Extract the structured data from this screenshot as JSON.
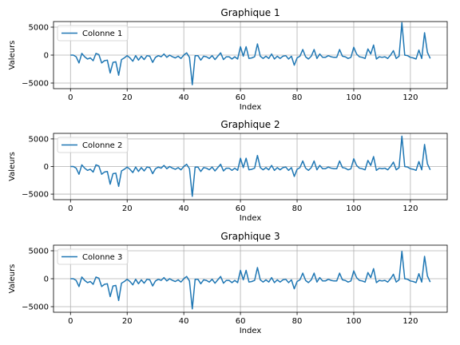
{
  "chart_data": [
    {
      "type": "line",
      "title": "Graphique 1",
      "xlabel": "Index",
      "ylabel": "Valeurs",
      "xlim": [
        -6,
        133
      ],
      "ylim": [
        -6000,
        6000
      ],
      "xticks": [
        0,
        20,
        40,
        60,
        80,
        100,
        120
      ],
      "yticks": [
        -5000,
        0,
        5000
      ],
      "grid": true,
      "legend_position": "top-left",
      "color": "#1f77b4",
      "series": [
        {
          "name": "Colonne 1",
          "x": [
            0,
            1,
            2,
            3,
            4,
            5,
            6,
            7,
            8,
            9,
            10,
            11,
            12,
            13,
            14,
            15,
            16,
            17,
            18,
            19,
            20,
            21,
            22,
            23,
            24,
            25,
            26,
            27,
            28,
            29,
            30,
            31,
            32,
            33,
            34,
            35,
            36,
            37,
            38,
            39,
            40,
            41,
            42,
            43,
            44,
            45,
            46,
            47,
            48,
            49,
            50,
            51,
            52,
            53,
            54,
            55,
            56,
            57,
            58,
            59,
            60,
            61,
            62,
            63,
            64,
            65,
            66,
            67,
            68,
            69,
            70,
            71,
            72,
            73,
            74,
            75,
            76,
            77,
            78,
            79,
            80,
            81,
            82,
            83,
            84,
            85,
            86,
            87,
            88,
            89,
            90,
            91,
            92,
            93,
            94,
            95,
            96,
            97,
            98,
            99,
            100,
            101,
            102,
            103,
            104,
            105,
            106,
            107,
            108,
            109,
            110,
            111,
            112,
            113,
            114,
            115,
            116,
            117,
            118,
            119,
            120,
            121,
            122,
            123,
            124,
            125,
            126,
            127
          ],
          "values": [
            0,
            0,
            -300,
            -1400,
            300,
            -300,
            -700,
            -500,
            -1000,
            300,
            100,
            -1400,
            -1000,
            -900,
            -3200,
            -1300,
            -1200,
            -3600,
            -800,
            -500,
            -100,
            -500,
            -1100,
            -100,
            -900,
            -200,
            -800,
            -100,
            -200,
            -1300,
            -400,
            -100,
            -300,
            200,
            -400,
            0,
            -300,
            -500,
            -200,
            -600,
            0,
            400,
            -400,
            -5300,
            -100,
            -100,
            -900,
            -200,
            -300,
            -600,
            -100,
            -800,
            -200,
            400,
            -800,
            -300,
            -300,
            -700,
            -300,
            -700,
            1500,
            -200,
            1500,
            -600,
            -500,
            -300,
            2000,
            -200,
            -600,
            -200,
            -600,
            200,
            -700,
            -200,
            -600,
            -200,
            -100,
            -700,
            -200,
            -1800,
            -500,
            -200,
            1000,
            -300,
            -700,
            -200,
            1000,
            -600,
            200,
            -400,
            -400,
            -100,
            -300,
            -400,
            -400,
            1000,
            -200,
            -300,
            -600,
            -400,
            1400,
            200,
            -300,
            -400,
            -600,
            1100,
            200,
            1800,
            -700,
            -300,
            -400,
            -300,
            -600,
            0,
            800,
            -600,
            -200,
            5800,
            0,
            -100,
            -400,
            -500,
            -700,
            900,
            -600,
            4000,
            500,
            -600
          ]
        }
      ]
    },
    {
      "type": "line",
      "title": "Graphique 2",
      "xlabel": "Index",
      "ylabel": "Valeurs",
      "xlim": [
        -6,
        133
      ],
      "ylim": [
        -6000,
        6000
      ],
      "xticks": [
        0,
        20,
        40,
        60,
        80,
        100,
        120
      ],
      "yticks": [
        -5000,
        0,
        5000
      ],
      "grid": true,
      "legend_position": "top-left",
      "color": "#1f77b4",
      "series": [
        {
          "name": "Colonne 2",
          "x": [
            0,
            1,
            2,
            3,
            4,
            5,
            6,
            7,
            8,
            9,
            10,
            11,
            12,
            13,
            14,
            15,
            16,
            17,
            18,
            19,
            20,
            21,
            22,
            23,
            24,
            25,
            26,
            27,
            28,
            29,
            30,
            31,
            32,
            33,
            34,
            35,
            36,
            37,
            38,
            39,
            40,
            41,
            42,
            43,
            44,
            45,
            46,
            47,
            48,
            49,
            50,
            51,
            52,
            53,
            54,
            55,
            56,
            57,
            58,
            59,
            60,
            61,
            62,
            63,
            64,
            65,
            66,
            67,
            68,
            69,
            70,
            71,
            72,
            73,
            74,
            75,
            76,
            77,
            78,
            79,
            80,
            81,
            82,
            83,
            84,
            85,
            86,
            87,
            88,
            89,
            90,
            91,
            92,
            93,
            94,
            95,
            96,
            97,
            98,
            99,
            100,
            101,
            102,
            103,
            104,
            105,
            106,
            107,
            108,
            109,
            110,
            111,
            112,
            113,
            114,
            115,
            116,
            117,
            118,
            119,
            120,
            121,
            122,
            123,
            124,
            125,
            126,
            127
          ],
          "values": [
            0,
            0,
            -300,
            -1400,
            300,
            -300,
            -700,
            -500,
            -1000,
            300,
            100,
            -1400,
            -1000,
            -900,
            -3200,
            -1300,
            -1200,
            -3600,
            -800,
            -500,
            -100,
            -500,
            -1100,
            -100,
            -900,
            -200,
            -800,
            -100,
            -200,
            -1300,
            -400,
            -100,
            -300,
            200,
            -400,
            0,
            -300,
            -500,
            -200,
            -600,
            0,
            400,
            -400,
            -5400,
            -100,
            -100,
            -900,
            -200,
            -300,
            -600,
            -100,
            -800,
            -200,
            400,
            -800,
            -300,
            -300,
            -700,
            -300,
            -700,
            1500,
            -200,
            1500,
            -600,
            -500,
            -300,
            2000,
            -200,
            -600,
            -200,
            -600,
            200,
            -700,
            -200,
            -600,
            -200,
            -100,
            -700,
            -200,
            -1800,
            -500,
            -200,
            1000,
            -300,
            -700,
            -200,
            1000,
            -600,
            200,
            -400,
            -400,
            -100,
            -300,
            -400,
            -400,
            1000,
            -200,
            -300,
            -600,
            -400,
            1400,
            200,
            -300,
            -400,
            -600,
            1100,
            200,
            1800,
            -700,
            -300,
            -400,
            -300,
            -600,
            0,
            800,
            -600,
            -200,
            5500,
            0,
            -100,
            -400,
            -500,
            -700,
            900,
            -600,
            4000,
            500,
            -600
          ]
        }
      ]
    },
    {
      "type": "line",
      "title": "Graphique 3",
      "xlabel": "Index",
      "ylabel": "Valeurs",
      "xlim": [
        -6,
        133
      ],
      "ylim": [
        -6000,
        6000
      ],
      "xticks": [
        0,
        20,
        40,
        60,
        80,
        100,
        120
      ],
      "yticks": [
        -5000,
        0,
        5000
      ],
      "grid": true,
      "legend_position": "top-left",
      "color": "#1f77b4",
      "series": [
        {
          "name": "Colonne 3",
          "x": [
            0,
            1,
            2,
            3,
            4,
            5,
            6,
            7,
            8,
            9,
            10,
            11,
            12,
            13,
            14,
            15,
            16,
            17,
            18,
            19,
            20,
            21,
            22,
            23,
            24,
            25,
            26,
            27,
            28,
            29,
            30,
            31,
            32,
            33,
            34,
            35,
            36,
            37,
            38,
            39,
            40,
            41,
            42,
            43,
            44,
            45,
            46,
            47,
            48,
            49,
            50,
            51,
            52,
            53,
            54,
            55,
            56,
            57,
            58,
            59,
            60,
            61,
            62,
            63,
            64,
            65,
            66,
            67,
            68,
            69,
            70,
            71,
            72,
            73,
            74,
            75,
            76,
            77,
            78,
            79,
            80,
            81,
            82,
            83,
            84,
            85,
            86,
            87,
            88,
            89,
            90,
            91,
            92,
            93,
            94,
            95,
            96,
            97,
            98,
            99,
            100,
            101,
            102,
            103,
            104,
            105,
            106,
            107,
            108,
            109,
            110,
            111,
            112,
            113,
            114,
            115,
            116,
            117,
            118,
            119,
            120,
            121,
            122,
            123,
            124,
            125,
            126,
            127
          ],
          "values": [
            0,
            0,
            -300,
            -1400,
            300,
            -300,
            -700,
            -500,
            -1000,
            300,
            100,
            -1400,
            -1000,
            -900,
            -3200,
            -1300,
            -1200,
            -3900,
            -800,
            -500,
            -100,
            -500,
            -1100,
            -100,
            -900,
            -200,
            -800,
            -100,
            -200,
            -1300,
            -400,
            -100,
            -300,
            200,
            -400,
            0,
            -300,
            -500,
            -200,
            -600,
            0,
            400,
            -400,
            -5400,
            -100,
            -100,
            -900,
            -200,
            -300,
            -600,
            -100,
            -800,
            -200,
            400,
            -800,
            -300,
            -300,
            -700,
            -300,
            -700,
            1500,
            -200,
            1500,
            -600,
            -500,
            -300,
            2000,
            -200,
            -600,
            -200,
            -600,
            200,
            -700,
            -200,
            -600,
            -200,
            -100,
            -700,
            -200,
            -1800,
            -500,
            -200,
            1000,
            -300,
            -700,
            -200,
            1000,
            -600,
            200,
            -400,
            -400,
            -100,
            -300,
            -400,
            -400,
            1000,
            -200,
            -300,
            -600,
            -400,
            1400,
            200,
            -300,
            -400,
            -600,
            1100,
            200,
            1800,
            -700,
            -300,
            -400,
            -300,
            -600,
            0,
            800,
            -600,
            -200,
            4900,
            0,
            -100,
            -400,
            -500,
            -700,
            900,
            -600,
            4000,
            500,
            -600
          ]
        }
      ]
    }
  ]
}
